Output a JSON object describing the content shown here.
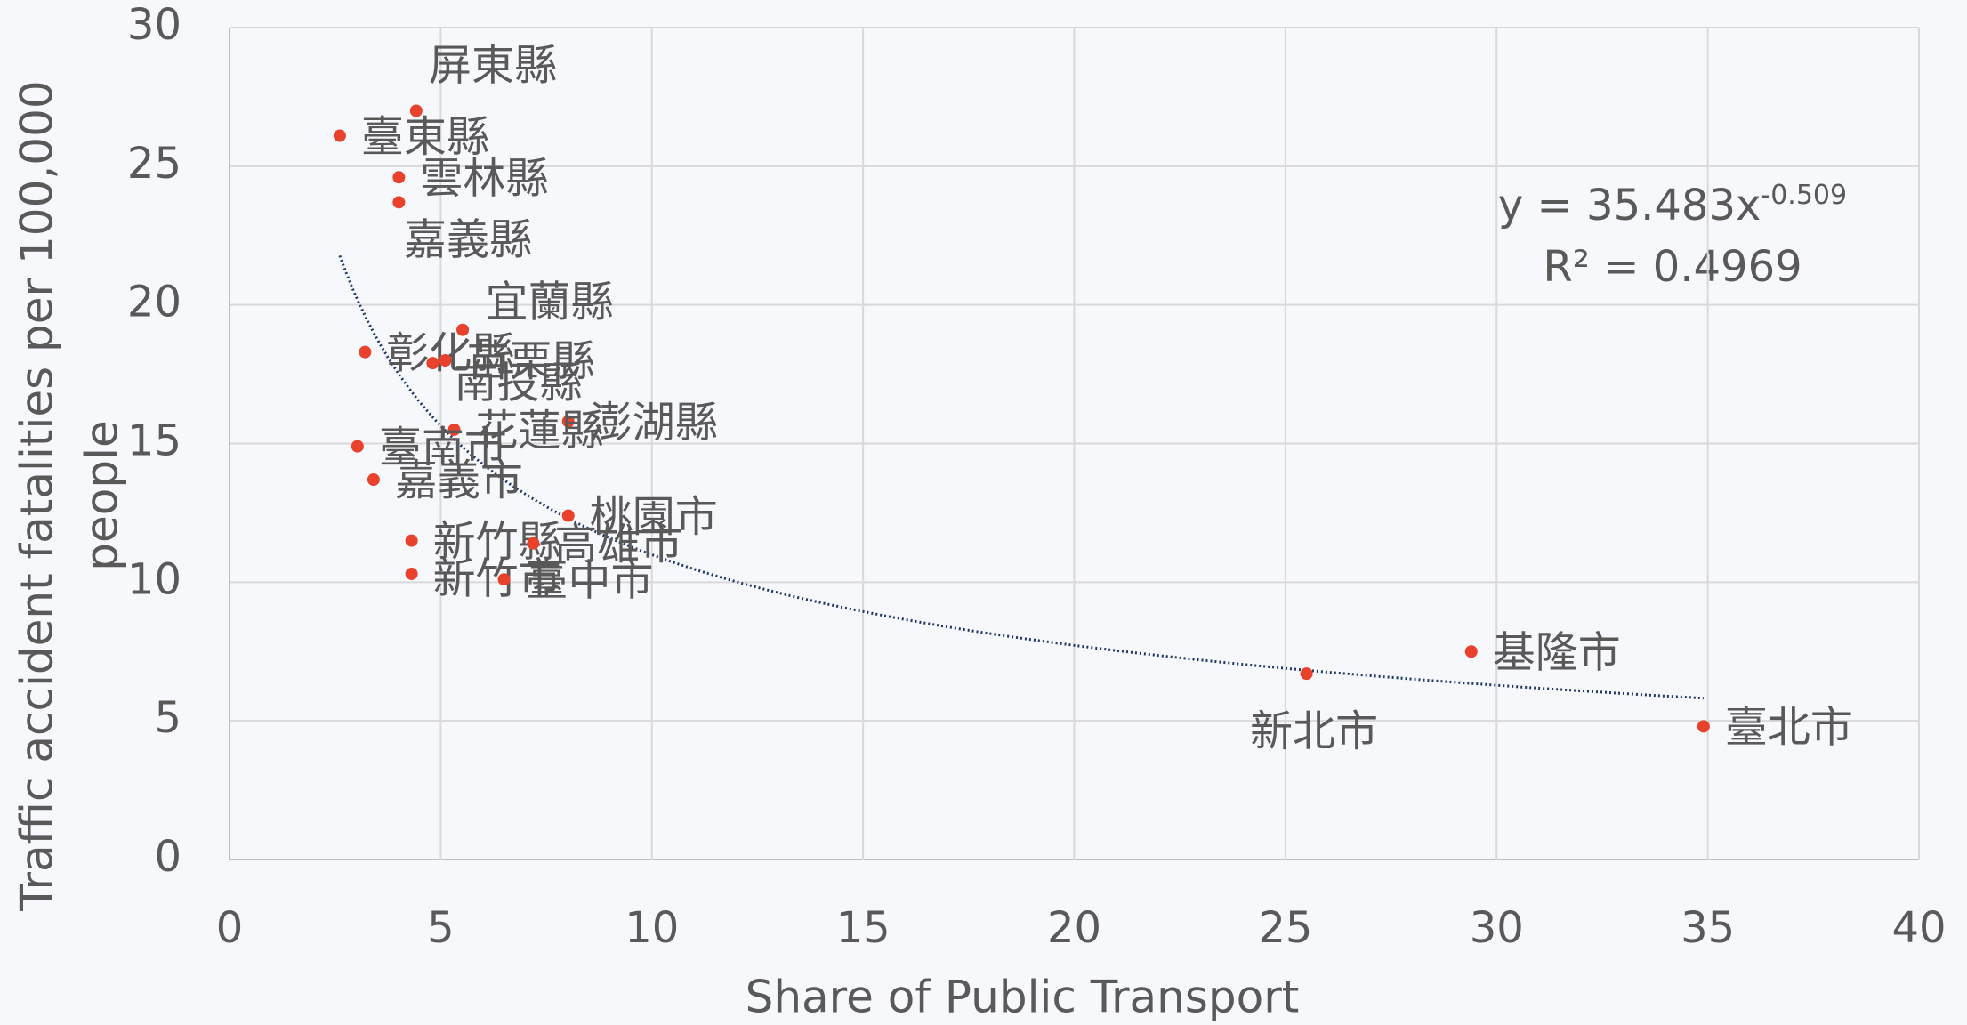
{
  "chart_data": {
    "type": "scatter",
    "xlabel": "Share of Public Transport",
    "ylabel": [
      "Traffic accident fatalities per 100,000",
      "people"
    ],
    "x": [
      4.42,
      2.61,
      4.01,
      4.01,
      5.52,
      3.21,
      5.11,
      4.81,
      8.02,
      5.32,
      3.03,
      3.41,
      8.02,
      4.31,
      7.19,
      4.31,
      6.5,
      29.4,
      25.5,
      34.9
    ],
    "values": [
      27.0,
      26.1,
      24.6,
      23.7,
      19.1,
      18.3,
      18.0,
      17.9,
      15.8,
      15.5,
      14.9,
      13.7,
      12.4,
      11.5,
      11.4,
      10.3,
      10.1,
      7.5,
      6.7,
      4.8
    ],
    "point_labels": [
      "屏東縣",
      "臺東縣",
      "雲林縣",
      "嘉義縣",
      "宜蘭縣",
      "彰化縣",
      "苗栗縣",
      "南投縣",
      "澎湖縣",
      "花蓮縣",
      "臺南市",
      "嘉義市",
      "桃園市",
      "新竹縣",
      "高雄市",
      "新竹市",
      "臺中市",
      "基隆市",
      "新北市",
      "臺北市"
    ],
    "color": "#e8412c",
    "xlim": [
      0,
      40
    ],
    "xticks": [
      0,
      5,
      10,
      15,
      20,
      25,
      30,
      35,
      40
    ],
    "ylim": [
      0,
      30
    ],
    "yticks": [
      0,
      5,
      10,
      15,
      20,
      25,
      30
    ],
    "grid": true,
    "trendline": {
      "type": "power",
      "coefficient": 35.483,
      "exponent": -0.509,
      "color": "#1f3864",
      "label": "y = 35.483x",
      "label_exponent": "-0.509",
      "r_squared": 0.4969,
      "r_squared_label": "R² = 0.4969"
    }
  }
}
